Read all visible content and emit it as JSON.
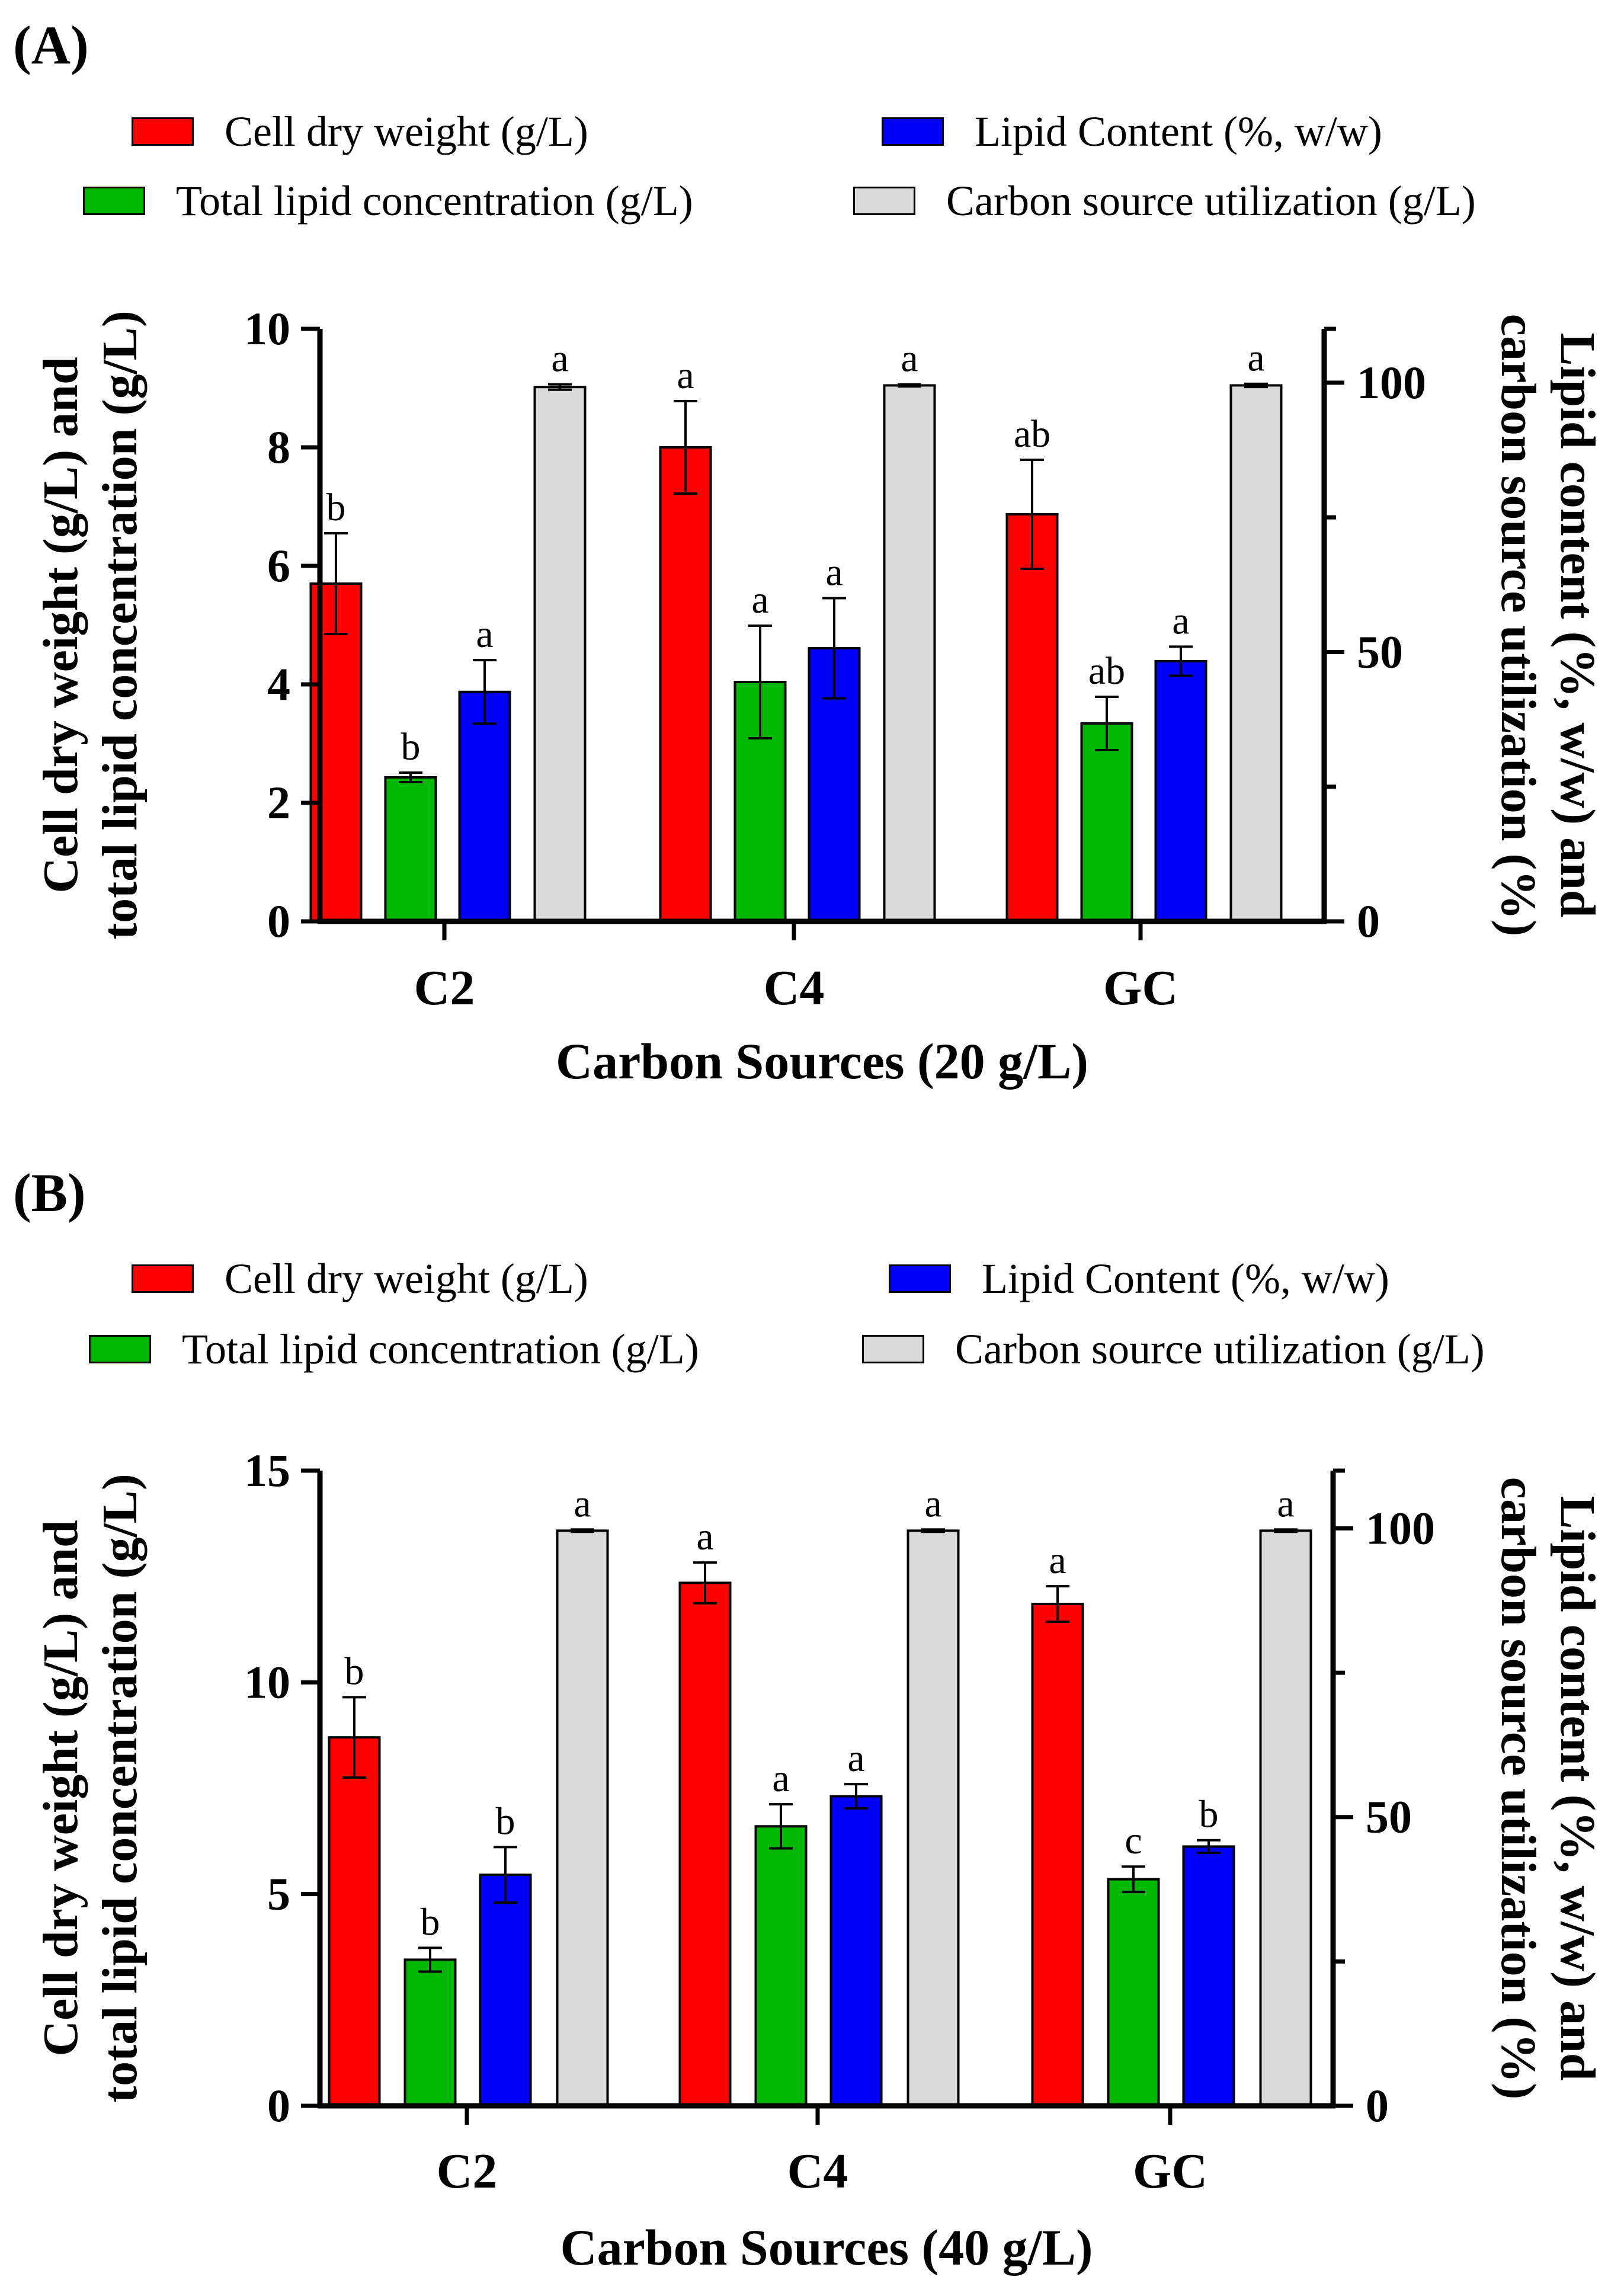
{
  "legend": [
    {
      "name": "Cell dry weight (g/L)",
      "color": "#ff0000"
    },
    {
      "name": "Lipid Content (%, w/w)",
      "color": "#0000ff"
    },
    {
      "name": "Total lipid concentration (g/L)",
      "color": "#00b800"
    },
    {
      "name": "Carbon source utilization (g/L)",
      "color": "#d9d9d9"
    }
  ],
  "chart_data": [
    {
      "panel_label": "(A)",
      "type": "bar",
      "categories": [
        "C2",
        "C4",
        "GC"
      ],
      "xlabel": "Carbon Sources (20 g/L)",
      "ylabel_line1": "Cell dry weight (g/L) and",
      "ylabel_line2": "total lipid concentration (g/L)",
      "ylabel_right_line1": "Lipid content (%, w/w) and",
      "ylabel_right_line2": "carbon source utilization (%)",
      "ylim": [
        0,
        10
      ],
      "y_ticks": [
        "0",
        "2",
        "4",
        "6",
        "8",
        "10"
      ],
      "ylim_right": [
        0,
        110
      ],
      "y2_ticks": [
        "0",
        "50",
        "100"
      ],
      "series": [
        {
          "name": "Cell dry weight (g/L)",
          "axis": "left",
          "color": "#ff0000",
          "values": [
            5.7,
            8.0,
            6.87
          ],
          "errors": [
            0.85,
            0.78,
            0.92
          ],
          "sig": [
            "b",
            "a",
            "ab"
          ]
        },
        {
          "name": "Total lipid concentration (g/L)",
          "axis": "left",
          "color": "#00b800",
          "values": [
            2.43,
            4.04,
            3.34
          ],
          "errors": [
            0.08,
            0.95,
            0.45
          ],
          "sig": [
            "b",
            "a",
            "ab"
          ]
        },
        {
          "name": "Lipid Content (%, w/w)",
          "axis": "right",
          "color": "#0000ff",
          "values": [
            42.6,
            50.7,
            48.3
          ],
          "errors": [
            5.9,
            9.3,
            2.7
          ],
          "sig": [
            "a",
            "a",
            "a"
          ]
        },
        {
          "name": "Carbon source utilization (g/L)",
          "axis": "right",
          "color": "#d9d9d9",
          "values": [
            99.2,
            99.5,
            99.5
          ],
          "errors": [
            0.5,
            0.2,
            0.3
          ],
          "sig": [
            "a",
            "a",
            "a"
          ]
        }
      ]
    },
    {
      "panel_label": "(B)",
      "type": "bar",
      "categories": [
        "C2",
        "C4",
        "GC"
      ],
      "xlabel": "Carbon Sources (40 g/L)",
      "ylabel_line1": "Cell dry weight (g/L) and",
      "ylabel_line2": "total lipid concentration (g/L)",
      "ylabel_right_line1": "Lipid content (%, w/w) and",
      "ylabel_right_line2": "carbon source utilization (%)",
      "ylim": [
        0,
        15
      ],
      "y_ticks": [
        "0",
        "5",
        "10",
        "15"
      ],
      "ylim_right": [
        0,
        110
      ],
      "y2_ticks": [
        "0",
        "50",
        "100"
      ],
      "series": [
        {
          "name": "Cell dry weight (g/L)",
          "axis": "left",
          "color": "#ff0000",
          "values": [
            8.7,
            12.35,
            11.85
          ],
          "errors": [
            0.95,
            0.48,
            0.42
          ],
          "sig": [
            "b",
            "a",
            "a"
          ]
        },
        {
          "name": "Total lipid concentration (g/L)",
          "axis": "left",
          "color": "#00b800",
          "values": [
            3.45,
            6.6,
            5.35
          ],
          "errors": [
            0.28,
            0.52,
            0.3
          ],
          "sig": [
            "b",
            "a",
            "c"
          ]
        },
        {
          "name": "Lipid Content (%, w/w)",
          "axis": "right",
          "color": "#0000ff",
          "values": [
            40.0,
            53.6,
            44.9
          ],
          "errors": [
            4.8,
            2.1,
            1.1
          ],
          "sig": [
            "b",
            "a",
            "b"
          ]
        },
        {
          "name": "Carbon source utilization (g/L)",
          "axis": "right",
          "color": "#d9d9d9",
          "values": [
            99.6,
            99.6,
            99.6
          ],
          "errors": [
            0.2,
            0.2,
            0.2
          ],
          "sig": [
            "a",
            "a",
            "a"
          ]
        }
      ]
    }
  ]
}
